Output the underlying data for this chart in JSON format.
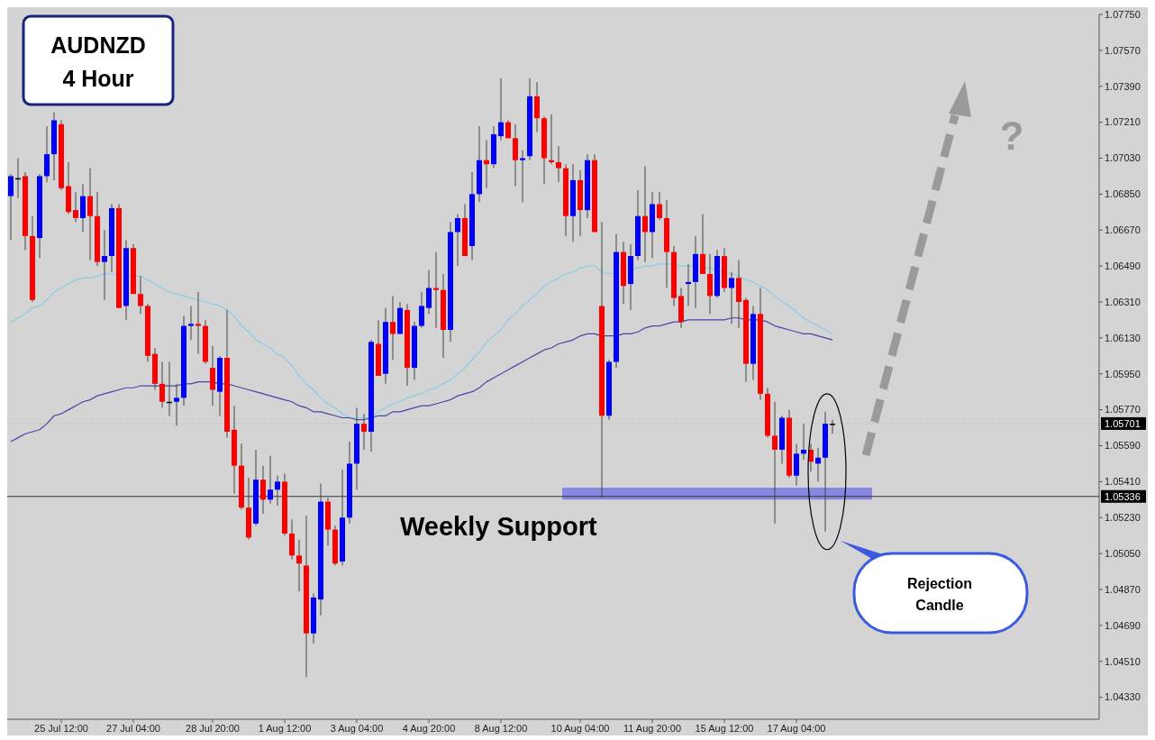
{
  "chart_data": {
    "type": "candlestick",
    "title": "AUDNZD",
    "subtitle": "4 Hour",
    "categories": [
      null,
      null,
      null,
      null,
      null,
      null,
      null,
      "25 Jul 12:00",
      null,
      null,
      null,
      null,
      null,
      null,
      null,
      null,
      null,
      "27 Jul 04:00",
      null,
      null,
      null,
      null,
      null,
      null,
      null,
      null,
      null,
      null,
      "28 Jul 20:00",
      null,
      null,
      null,
      null,
      null,
      null,
      null,
      null,
      null,
      "1 Aug 12:00",
      null,
      null,
      null,
      null,
      null,
      null,
      null,
      null,
      null,
      "3 Aug 04:00",
      null,
      null,
      null,
      null,
      null,
      null,
      null,
      null,
      null,
      "4 Aug 20:00",
      null,
      null,
      null,
      null,
      null,
      null,
      null,
      null,
      null,
      "8 Aug 12:00",
      null,
      null,
      null,
      null,
      null,
      null,
      null,
      null,
      null,
      null,
      "10 Aug 04:00",
      null,
      null,
      null,
      null,
      null,
      null,
      null,
      null,
      null,
      "11 Aug 20:00",
      null,
      null,
      null,
      null,
      null,
      null,
      null,
      null,
      null,
      "15 Aug 12:00",
      null,
      null,
      null,
      null,
      null,
      null,
      null,
      null,
      null,
      "17 Aug 04:00",
      null,
      null,
      null,
      null,
      null
    ],
    "ohlc": [
      [
        1.0684,
        1.0695,
        1.0662,
        1.0694
      ],
      [
        1.0693,
        1.0703,
        1.0683,
        1.0693
      ],
      [
        1.0694,
        1.0696,
        1.0657,
        1.0664
      ],
      [
        1.0664,
        1.0674,
        1.0631,
        1.0632
      ],
      [
        1.0663,
        1.0695,
        1.0653,
        1.0694
      ],
      [
        1.0694,
        1.0719,
        1.0691,
        1.0705
      ],
      [
        1.0705,
        1.0726,
        1.0692,
        1.0722
      ],
      [
        1.072,
        1.0722,
        1.0687,
        1.0688
      ],
      [
        1.0689,
        1.0701,
        1.0675,
        1.0676
      ],
      [
        1.0677,
        1.0686,
        1.0671,
        1.0673
      ],
      [
        1.0673,
        1.069,
        1.0666,
        1.0684
      ],
      [
        1.0684,
        1.0698,
        1.0652,
        1.0674
      ],
      [
        1.0674,
        1.0686,
        1.0649,
        1.0651
      ],
      [
        1.0651,
        1.0667,
        1.0632,
        1.0654
      ],
      [
        1.0654,
        1.068,
        1.0646,
        1.0678
      ],
      [
        1.0678,
        1.068,
        1.0628,
        1.0628
      ],
      [
        1.0629,
        1.0662,
        1.0622,
        1.0658
      ],
      [
        1.0658,
        1.066,
        1.0635,
        1.0635
      ],
      [
        1.0635,
        1.0644,
        1.0625,
        1.0629
      ],
      [
        1.0629,
        1.063,
        1.0601,
        1.0604
      ],
      [
        1.0605,
        1.0608,
        1.0587,
        1.059
      ],
      [
        1.059,
        1.0601,
        1.0578,
        1.0581
      ],
      [
        1.0581,
        1.0601,
        1.0574,
        1.0581
      ],
      [
        1.0581,
        1.059,
        1.0569,
        1.0583
      ],
      [
        1.0583,
        1.0624,
        1.0579,
        1.0619
      ],
      [
        1.0619,
        1.0629,
        1.0612,
        1.062
      ],
      [
        1.062,
        1.0636,
        1.0605,
        1.0619
      ],
      [
        1.0619,
        1.0622,
        1.06,
        1.0601
      ],
      [
        1.0598,
        1.0609,
        1.0579,
        1.0587
      ],
      [
        1.0586,
        1.0604,
        1.0574,
        1.0603
      ],
      [
        1.0603,
        1.0627,
        1.0563,
        1.0566
      ],
      [
        1.0567,
        1.0579,
        1.0535,
        1.0549
      ],
      [
        1.0549,
        1.056,
        1.0527,
        1.0528
      ],
      [
        1.0528,
        1.0543,
        1.0512,
        1.0513
      ],
      [
        1.052,
        1.0557,
        1.0519,
        1.0542
      ],
      [
        1.0542,
        1.0549,
        1.0525,
        1.0532
      ],
      [
        1.0532,
        1.0554,
        1.053,
        1.0537
      ],
      [
        1.0537,
        1.0544,
        1.0529,
        1.0541
      ],
      [
        1.0541,
        1.0545,
        1.0514,
        1.0515
      ],
      [
        1.0515,
        1.0522,
        1.0502,
        1.0504
      ],
      [
        1.0504,
        1.0512,
        1.0486,
        1.05
      ],
      [
        1.0499,
        1.0524,
        1.0443,
        1.0465
      ],
      [
        1.0465,
        1.0485,
        1.046,
        1.0483
      ],
      [
        1.0482,
        1.054,
        1.0474,
        1.0531
      ],
      [
        1.0531,
        1.0533,
        1.0509,
        1.0517
      ],
      [
        1.0517,
        1.0519,
        1.0499,
        1.05
      ],
      [
        1.0501,
        1.0547,
        1.0499,
        1.0523
      ],
      [
        1.0523,
        1.0561,
        1.052,
        1.055
      ],
      [
        1.055,
        1.0578,
        1.0537,
        1.057
      ],
      [
        1.057,
        1.0575,
        1.0557,
        1.0566
      ],
      [
        1.0566,
        1.0612,
        1.0556,
        1.0611
      ],
      [
        1.061,
        1.0622,
        1.0594,
        1.0594
      ],
      [
        1.0595,
        1.0628,
        1.059,
        1.0621
      ],
      [
        1.0621,
        1.0634,
        1.0602,
        1.0615
      ],
      [
        1.0615,
        1.0631,
        1.0615,
        1.0628
      ],
      [
        1.0627,
        1.063,
        1.0589,
        1.0598
      ],
      [
        1.0598,
        1.0621,
        1.0592,
        1.0619
      ],
      [
        1.0619,
        1.0636,
        1.0618,
        1.0629
      ],
      [
        1.0628,
        1.0647,
        1.0625,
        1.0638
      ],
      [
        1.0638,
        1.0656,
        1.0618,
        1.0637
      ],
      [
        1.0637,
        1.0645,
        1.0603,
        1.0617
      ],
      [
        1.0617,
        1.0671,
        1.0611,
        1.0666
      ],
      [
        1.0666,
        1.0675,
        1.0649,
        1.0673
      ],
      [
        1.0673,
        1.068,
        1.0654,
        1.0654
      ],
      [
        1.0659,
        1.0696,
        1.0652,
        1.0685
      ],
      [
        1.0685,
        1.0719,
        1.0681,
        1.0702
      ],
      [
        1.0702,
        1.0712,
        1.0688,
        1.07
      ],
      [
        1.07,
        1.0719,
        1.0698,
        1.0715
      ],
      [
        1.0714,
        1.0743,
        1.0712,
        1.0721
      ],
      [
        1.0721,
        1.0722,
        1.0713,
        1.0713
      ],
      [
        1.0713,
        1.072,
        1.0689,
        1.0702
      ],
      [
        1.0702,
        1.0707,
        1.0681,
        1.0703
      ],
      [
        1.0704,
        1.0743,
        1.0702,
        1.0734
      ],
      [
        1.0734,
        1.0741,
        1.0716,
        1.0723
      ],
      [
        1.0723,
        1.0724,
        1.069,
        1.0703
      ],
      [
        1.0702,
        1.0725,
        1.07,
        1.0701
      ],
      [
        1.0701,
        1.0709,
        1.0691,
        1.0698
      ],
      [
        1.0698,
        1.07,
        1.0664,
        1.0674
      ],
      [
        1.0674,
        1.07,
        1.0661,
        1.0692
      ],
      [
        1.0692,
        1.0697,
        1.0664,
        1.0677
      ],
      [
        1.0677,
        1.0705,
        1.0673,
        1.0702
      ],
      [
        1.0702,
        1.0705,
        1.0666,
        1.0666
      ],
      [
        1.0629,
        1.0671,
        1.0533,
        1.0574
      ],
      [
        1.0574,
        1.0602,
        1.0572,
        1.0601
      ],
      [
        1.0601,
        1.0665,
        1.0598,
        1.0656
      ],
      [
        1.0656,
        1.0661,
        1.063,
        1.0639
      ],
      [
        1.064,
        1.066,
        1.0627,
        1.0654
      ],
      [
        1.0654,
        1.0687,
        1.0652,
        1.0674
      ],
      [
        1.0674,
        1.0699,
        1.0651,
        1.0666
      ],
      [
        1.0666,
        1.0686,
        1.0653,
        1.068
      ],
      [
        1.068,
        1.0686,
        1.0672,
        1.0673
      ],
      [
        1.0673,
        1.0682,
        1.0638,
        1.0656
      ],
      [
        1.0656,
        1.0659,
        1.0629,
        1.0633
      ],
      [
        1.0634,
        1.0638,
        1.0618,
        1.0621
      ],
      [
        1.064,
        1.065,
        1.0629,
        1.0641
      ],
      [
        1.0641,
        1.0664,
        1.0628,
        1.0655
      ],
      [
        1.0655,
        1.0675,
        1.0645,
        1.0645
      ],
      [
        1.0645,
        1.0655,
        1.0625,
        1.0634
      ],
      [
        1.0634,
        1.0657,
        1.0633,
        1.0654
      ],
      [
        1.0654,
        1.0658,
        1.0636,
        1.0638
      ],
      [
        1.0638,
        1.0646,
        1.062,
        1.0643
      ],
      [
        1.0643,
        1.0652,
        1.0618,
        1.0631
      ],
      [
        1.0632,
        1.0633,
        1.0591,
        1.06
      ],
      [
        1.06,
        1.0629,
        1.0592,
        1.0625
      ],
      [
        1.0625,
        1.0638,
        1.0582,
        1.0585
      ],
      [
        1.0585,
        1.0588,
        1.0563,
        1.0564
      ],
      [
        1.0564,
        1.0581,
        1.052,
        1.0557
      ],
      [
        1.0557,
        1.0574,
        1.055,
        1.0573
      ],
      [
        1.0573,
        1.0577,
        1.0543,
        1.0544
      ],
      [
        1.0544,
        1.056,
        1.0539,
        1.0555
      ],
      [
        1.0555,
        1.057,
        1.0552,
        1.0557
      ],
      [
        1.0557,
        1.056,
        1.0546,
        1.0551
      ],
      [
        1.055,
        1.0558,
        1.0541,
        1.0553
      ],
      [
        1.0553,
        1.0576,
        1.0516,
        1.057
      ],
      [
        1.057,
        1.0572,
        1.0565,
        1.057
      ]
    ],
    "colors": [
      "#0000ff",
      "#000000",
      "#ff0000",
      "#ff0000",
      "#0000ff",
      "#0000ff",
      "#0000ff",
      "#ff0000",
      "#ff0000",
      "#ff0000",
      "#0000ff",
      "#ff0000",
      "#ff0000",
      "#0000ff",
      "#0000ff",
      "#ff0000",
      "#0000ff",
      "#ff0000",
      "#ff0000",
      "#ff0000",
      "#ff0000",
      "#ff0000",
      "#000000",
      "#0000ff",
      "#0000ff",
      "#0000ff",
      "#ff0000",
      "#ff0000",
      "#ff0000",
      "#0000ff",
      "#ff0000",
      "#ff0000",
      "#ff0000",
      "#ff0000",
      "#0000ff",
      "#ff0000",
      "#0000ff",
      "#0000ff",
      "#ff0000",
      "#ff0000",
      "#ff0000",
      "#ff0000",
      "#0000ff",
      "#0000ff",
      "#ff0000",
      "#ff0000",
      "#0000ff",
      "#0000ff",
      "#0000ff",
      "#ff0000",
      "#0000ff",
      "#ff0000",
      "#0000ff",
      "#ff0000",
      "#0000ff",
      "#ff0000",
      "#0000ff",
      "#0000ff",
      "#0000ff",
      "#ff0000",
      "#ff0000",
      "#0000ff",
      "#0000ff",
      "#ff0000",
      "#0000ff",
      "#0000ff",
      "#ff0000",
      "#0000ff",
      "#0000ff",
      "#ff0000",
      "#ff0000",
      "#0000ff",
      "#0000ff",
      "#ff0000",
      "#ff0000",
      "#ff0000",
      "#ff0000",
      "#ff0000",
      "#0000ff",
      "#ff0000",
      "#0000ff",
      "#ff0000",
      "#ff0000",
      "#0000ff",
      "#0000ff",
      "#ff0000",
      "#0000ff",
      "#0000ff",
      "#ff0000",
      "#0000ff",
      "#ff0000",
      "#ff0000",
      "#ff0000",
      "#ff0000",
      "#0000ff",
      "#0000ff",
      "#ff0000",
      "#ff0000",
      "#0000ff",
      "#ff0000",
      "#0000ff",
      "#ff0000",
      "#ff0000",
      "#0000ff",
      "#ff0000",
      "#ff0000",
      "#ff0000",
      "#0000ff",
      "#ff0000",
      "#0000ff",
      "#0000ff",
      "#ff0000",
      "#0000ff",
      "#0000ff",
      "#000000"
    ],
    "series": [
      {
        "type": "line",
        "color": "#87cde6",
        "values": [
          1.0621,
          1.0623,
          1.0625,
          1.0628,
          1.0629,
          1.0632,
          1.0636,
          1.0638,
          1.064,
          1.0642,
          1.0643,
          1.0643,
          1.0644,
          1.0645,
          1.0645,
          1.0645,
          1.0644,
          1.0644,
          1.0644,
          1.0642,
          1.064,
          1.0638,
          1.0636,
          1.0635,
          1.0634,
          1.0633,
          1.0632,
          1.0631,
          1.063,
          1.0629,
          1.0627,
          1.0624,
          1.0619,
          1.0616,
          1.0612,
          1.061,
          1.0608,
          1.0605,
          1.0603,
          1.0599,
          1.0594,
          1.059,
          1.0587,
          1.0583,
          1.058,
          1.0578,
          1.0575,
          1.0573,
          1.0573,
          1.0573,
          1.0573,
          1.0576,
          1.0578,
          1.058,
          1.0581,
          1.0583,
          1.0584,
          1.0585,
          1.0587,
          1.0588,
          1.059,
          1.0592,
          1.0595,
          1.0598,
          1.0602,
          1.0606,
          1.0611,
          1.0614,
          1.0617,
          1.0622,
          1.0625,
          1.0629,
          1.0632,
          1.0635,
          1.0639,
          1.0641,
          1.0643,
          1.0645,
          1.0646,
          1.0648,
          1.0649,
          1.0649,
          1.0646,
          1.0645,
          1.0646,
          1.0646,
          1.0647,
          1.0648,
          1.0649,
          1.0649,
          1.065,
          1.065,
          1.065,
          1.0649,
          1.0649,
          1.0649,
          1.0648,
          1.0648,
          1.0647,
          1.0646,
          1.0645,
          1.0644,
          1.0642,
          1.0641,
          1.0639,
          1.0637,
          1.0634,
          1.0631,
          1.0629,
          1.0626,
          1.0623,
          1.0621,
          1.0619,
          1.0617,
          1.0615
        ]
      },
      {
        "type": "line",
        "color": "#4646aa",
        "values": [
          1.0561,
          1.0563,
          1.0565,
          1.0566,
          1.0567,
          1.057,
          1.0574,
          1.0575,
          1.0577,
          1.0579,
          1.0581,
          1.0582,
          1.0584,
          1.0585,
          1.0586,
          1.0587,
          1.0588,
          1.0588,
          1.0589,
          1.0589,
          1.0589,
          1.0589,
          1.0589,
          1.0589,
          1.059,
          1.059,
          1.0591,
          1.0591,
          1.0591,
          1.059,
          1.059,
          1.0589,
          1.0588,
          1.0587,
          1.0586,
          1.0585,
          1.0584,
          1.0583,
          1.0582,
          1.0581,
          1.0579,
          1.0578,
          1.0576,
          1.0576,
          1.0575,
          1.0574,
          1.0573,
          1.0573,
          1.0572,
          1.0572,
          1.0573,
          1.0574,
          1.0574,
          1.0576,
          1.0576,
          1.0577,
          1.0578,
          1.0579,
          1.0579,
          1.058,
          1.0581,
          1.0582,
          1.0584,
          1.0585,
          1.0586,
          1.0588,
          1.0591,
          1.0593,
          1.0595,
          1.0597,
          1.0599,
          1.0601,
          1.0603,
          1.0605,
          1.0607,
          1.0608,
          1.061,
          1.0611,
          1.0612,
          1.0614,
          1.0615,
          1.0615,
          1.0614,
          1.0614,
          1.0614,
          1.0615,
          1.0615,
          1.0616,
          1.0618,
          1.0619,
          1.0619,
          1.062,
          1.0621,
          1.0621,
          1.0622,
          1.0622,
          1.0622,
          1.0622,
          1.0622,
          1.0622,
          1.0623,
          1.0623,
          1.0622,
          1.0622,
          1.0622,
          1.0621,
          1.0619,
          1.0618,
          1.0617,
          1.0616,
          1.0615,
          1.0615,
          1.0614,
          1.0613,
          1.0612
        ]
      }
    ],
    "ylim": [
      1.0422,
      1.0775
    ],
    "yticks": [
      {
        "value": 1.0433,
        "label": "1.04330"
      },
      {
        "value": 1.0451,
        "label": "1.04510"
      },
      {
        "value": 1.0469,
        "label": "1.04690"
      },
      {
        "value": 1.0487,
        "label": "1.04870"
      },
      {
        "value": 1.0505,
        "label": "1.05050"
      },
      {
        "value": 1.0523,
        "label": "1.05230"
      },
      {
        "value": 1.0541,
        "label": "1.05410"
      },
      {
        "value": 1.0559,
        "label": "1.05590"
      },
      {
        "value": 1.0577,
        "label": "1.05770"
      },
      {
        "value": 1.0595,
        "label": "1.05950"
      },
      {
        "value": 1.0613,
        "label": "1.06130"
      },
      {
        "value": 1.0631,
        "label": "1.06310"
      },
      {
        "value": 1.0649,
        "label": "1.06490"
      },
      {
        "value": 1.0667,
        "label": "1.06670"
      },
      {
        "value": 1.0685,
        "label": "1.06850"
      },
      {
        "value": 1.0703,
        "label": "1.07030"
      },
      {
        "value": 1.0721,
        "label": "1.07210"
      },
      {
        "value": 1.0739,
        "label": "1.07390"
      },
      {
        "value": 1.0757,
        "label": "1.07570"
      },
      {
        "value": 1.0775,
        "label": "1.07750"
      }
    ],
    "ref_lines": [
      {
        "axis": "y",
        "value": 1.05336,
        "label": "1.05336",
        "color": "#333333",
        "line_style": "solid"
      },
      {
        "axis": "y",
        "value": 1.05701,
        "label": "1.05701",
        "color": "#c4c4c4",
        "line_style": "dotted"
      }
    ],
    "bands": [
      {
        "axis": "y",
        "from": 1.0532,
        "to": 1.0538,
        "label": "Weekly Support",
        "color": "#6f6fe8"
      }
    ],
    "annotations": [
      "Rejection Candle",
      "?"
    ]
  }
}
